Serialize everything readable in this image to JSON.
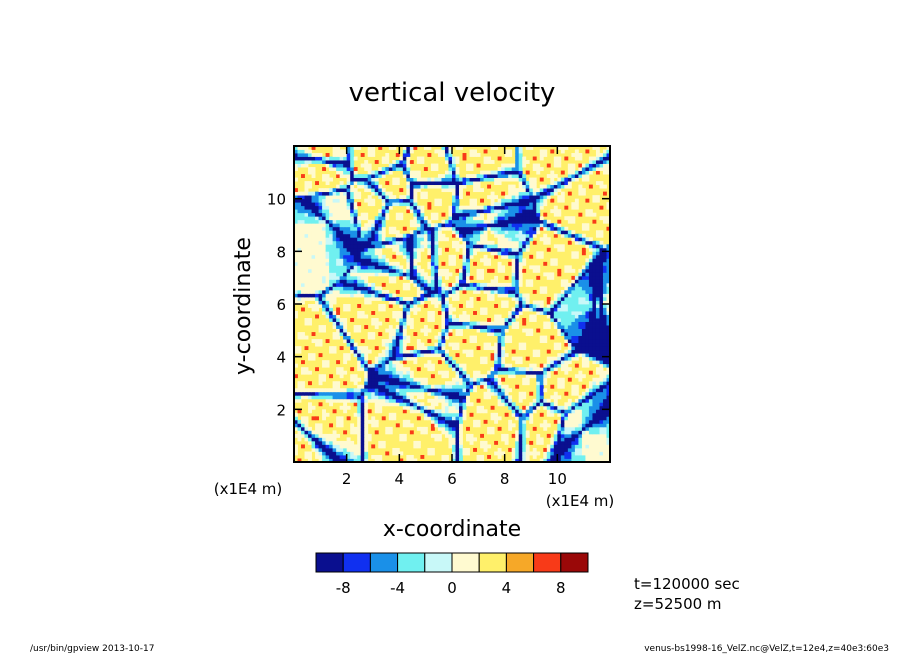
{
  "chart_data": {
    "type": "heatmap",
    "title": "vertical velocity",
    "xlabel": "x-coordinate",
    "ylabel": "y-coordinate",
    "x_unit_label": "(x1E4 m)",
    "y_unit_label": "(x1E4 m)",
    "xlim": [
      0,
      12
    ],
    "ylim": [
      0,
      12
    ],
    "x_ticks": [
      2,
      4,
      6,
      8,
      10
    ],
    "y_ticks": [
      2,
      4,
      6,
      8,
      10
    ],
    "colorbar": {
      "levels": [
        -10,
        -8,
        -6,
        -4,
        -2,
        0,
        2,
        4,
        6,
        8,
        10
      ],
      "colors": [
        "#0a0f8f",
        "#1030f0",
        "#1a90e8",
        "#70f0f0",
        "#c8f8f8",
        "#fffad0",
        "#fff06a",
        "#f6a828",
        "#f83a18",
        "#9a0808"
      ],
      "tick_labels": [
        "-8",
        "-4",
        "0",
        "4",
        "8"
      ],
      "tick_values": [
        -8,
        -4,
        0,
        4,
        8
      ]
    },
    "annotations": {
      "time": "t=120000 sec",
      "height": "z=52500 m"
    }
  },
  "footer": {
    "left": "/usr/bin/gpview   2013-10-17",
    "right": "venus-bs1998-16_VelZ.nc@VelZ,t=12e4,z=40e3:60e3"
  }
}
